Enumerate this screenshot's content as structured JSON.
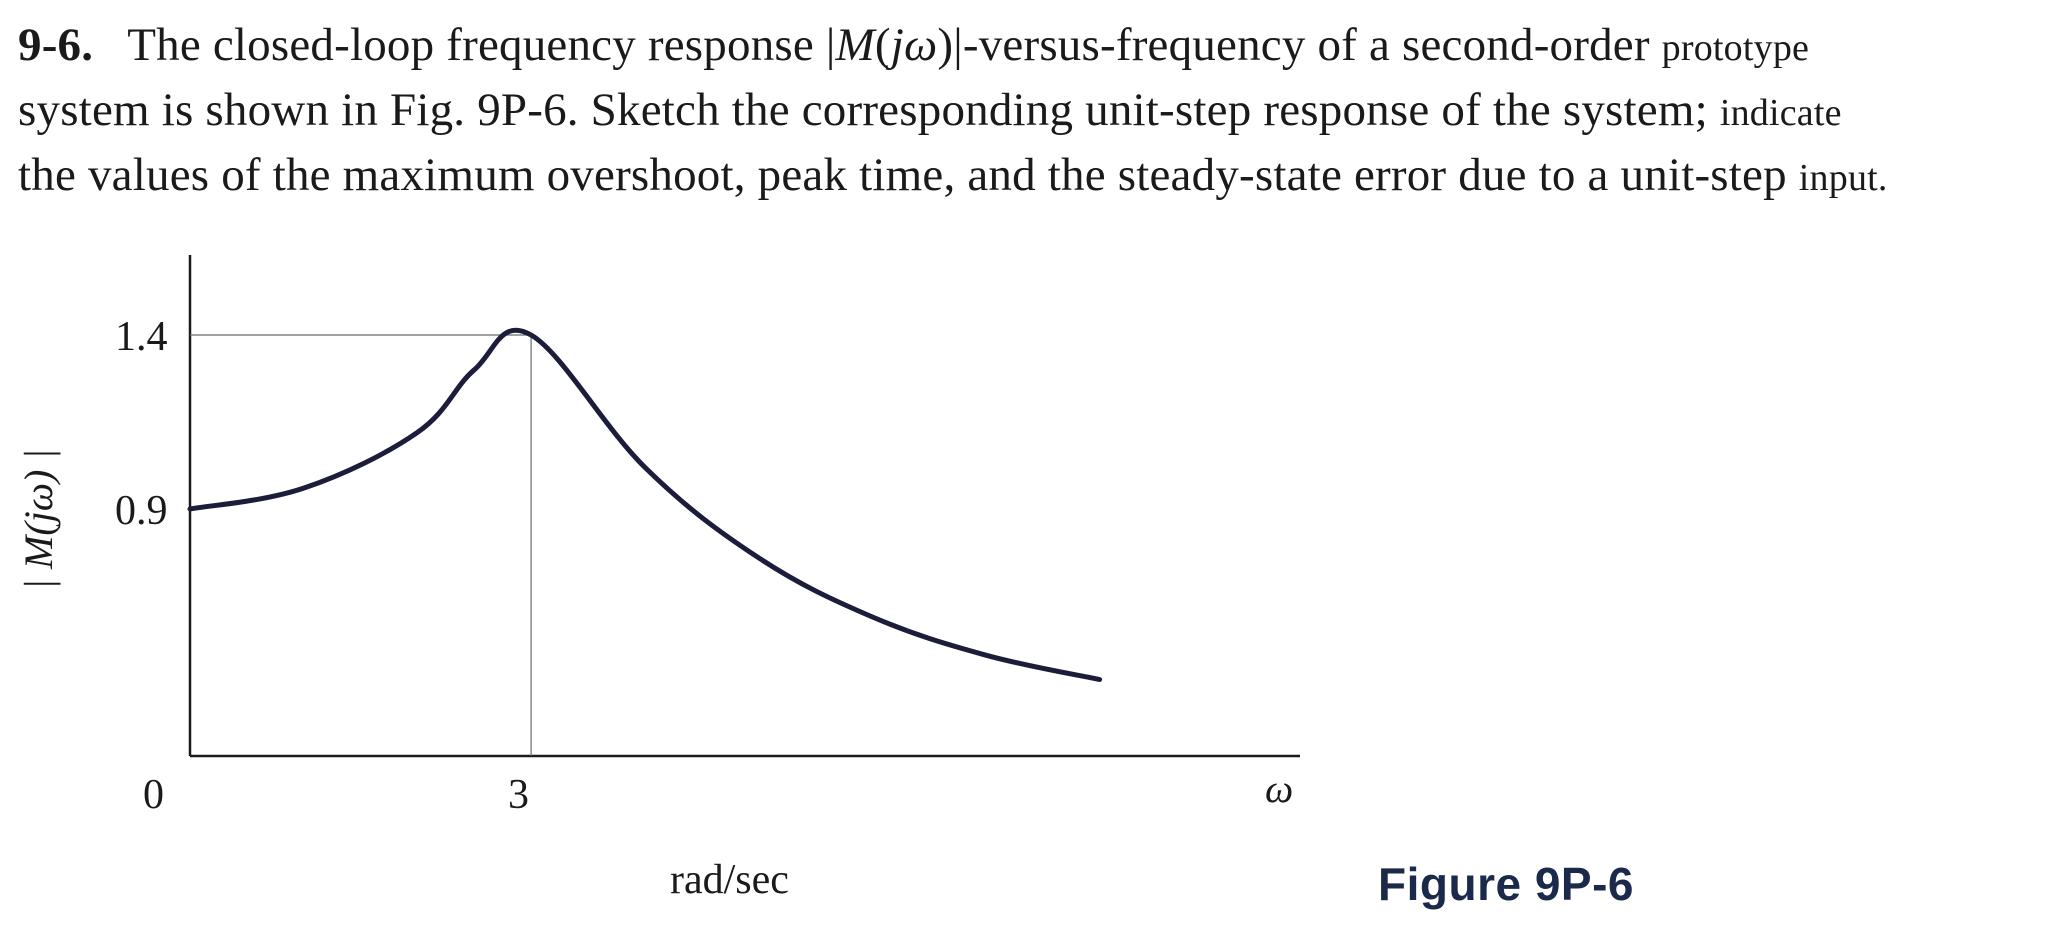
{
  "problem": {
    "number": "9-6.",
    "line1_a": "The closed-loop frequency response |",
    "line1_m": "M",
    "line1_b": "(",
    "line1_jw": "jω",
    "line1_c": ")|-versus-frequency of a second-order ",
    "line1_small": "prototype",
    "line2": "system is shown in Fig. 9P-6. Sketch the corresponding unit-step response of the system; ",
    "line2_small": "indicate",
    "line3": "the values of the maximum overshoot, peak time, and the steady-state error due to a unit-step ",
    "line3_small": "input."
  },
  "chart_data": {
    "type": "line",
    "xlabel": "rad/sec",
    "x_axis_symbol": "ω",
    "ylabel": "| M(jω) |",
    "x_ticks": [
      "0",
      "3"
    ],
    "y_ticks": [
      "0.9",
      "1.4"
    ],
    "series": [
      {
        "x": [
          0,
          1,
          2,
          2.5,
          3,
          4,
          5,
          6,
          7,
          8
        ],
        "y": [
          0.9,
          0.96,
          1.12,
          1.3,
          1.4,
          1.02,
          0.76,
          0.59,
          0.48,
          0.41
        ]
      }
    ],
    "annotations": [
      "dashed reference lines at peak (3, 1.4)"
    ]
  },
  "figure": {
    "caption": "Figure 9P-6"
  },
  "colors": {
    "curve": "#1c1d3a",
    "axis": "#1a1a1a",
    "caption": "#1b2a4a"
  }
}
